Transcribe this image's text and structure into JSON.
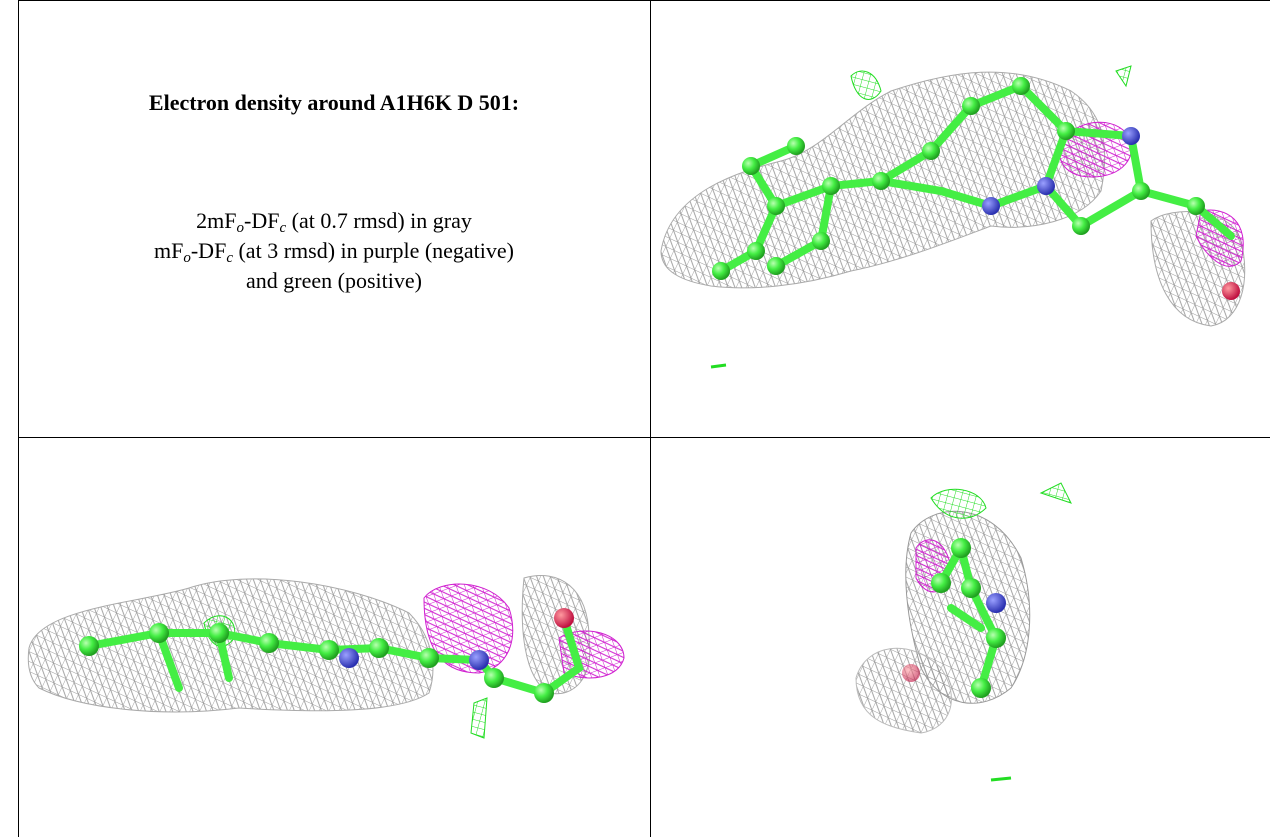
{
  "panel": {
    "title": "Electron density around A1H6K D 501:",
    "legend": [
      [
        "2mF",
        "o",
        "-DF",
        "c",
        " (at 0.7 rmsd) in gray"
      ],
      [
        "mF",
        "o",
        "-DF",
        "c",
        " (at 3 rmsd) in purple (negative)"
      ],
      [
        "and green (positive)"
      ]
    ]
  }
}
